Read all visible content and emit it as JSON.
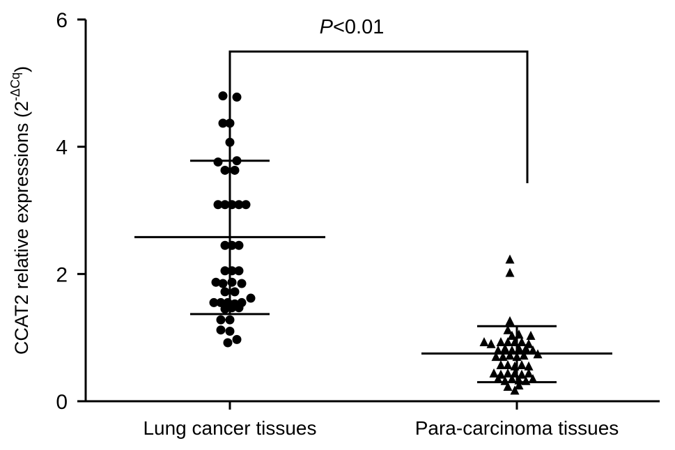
{
  "chart_data": {
    "type": "scatter",
    "ylabel": "CCAT2 relative expressions (2",
    "ylabel_sup": "-ΔCq",
    "ylabel_close": ")",
    "ylim": [
      0,
      6
    ],
    "yticks": [
      0,
      2,
      4,
      6
    ],
    "categories": [
      "Lung cancer tissues",
      "Para-carcinoma tissues"
    ],
    "significance": {
      "prefix": "P",
      "rest": "<0.01"
    },
    "grid": false,
    "series": [
      {
        "category": "Lung cancer tissues",
        "marker": "circle",
        "mean": 2.58,
        "sd_upper": 3.78,
        "sd_lower": 1.37,
        "points": [
          {
            "x": -0.1,
            "y": 4.8
          },
          {
            "x": 0.1,
            "y": 4.78
          },
          {
            "x": -0.1,
            "y": 4.37
          },
          {
            "x": 0.0,
            "y": 4.37
          },
          {
            "x": 0.0,
            "y": 4.07
          },
          {
            "x": -0.17,
            "y": 3.76
          },
          {
            "x": 0.1,
            "y": 3.78
          },
          {
            "x": -0.07,
            "y": 3.63
          },
          {
            "x": 0.07,
            "y": 3.63
          },
          {
            "x": -0.17,
            "y": 3.09
          },
          {
            "x": -0.07,
            "y": 3.09
          },
          {
            "x": 0.03,
            "y": 3.09
          },
          {
            "x": 0.13,
            "y": 3.09
          },
          {
            "x": 0.23,
            "y": 3.09
          },
          {
            "x": -0.07,
            "y": 2.45
          },
          {
            "x": 0.03,
            "y": 2.45
          },
          {
            "x": 0.13,
            "y": 2.45
          },
          {
            "x": -0.07,
            "y": 2.05
          },
          {
            "x": 0.03,
            "y": 2.05
          },
          {
            "x": 0.13,
            "y": 2.05
          },
          {
            "x": -0.2,
            "y": 1.87
          },
          {
            "x": -0.1,
            "y": 1.85
          },
          {
            "x": 0.03,
            "y": 1.87
          },
          {
            "x": 0.17,
            "y": 1.85
          },
          {
            "x": -0.07,
            "y": 1.72
          },
          {
            "x": 0.07,
            "y": 1.72
          },
          {
            "x": -0.23,
            "y": 1.55
          },
          {
            "x": -0.13,
            "y": 1.55
          },
          {
            "x": -0.03,
            "y": 1.55
          },
          {
            "x": 0.07,
            "y": 1.53
          },
          {
            "x": 0.17,
            "y": 1.55
          },
          {
            "x": 0.3,
            "y": 1.62
          },
          {
            "x": -0.07,
            "y": 1.45
          },
          {
            "x": 0.03,
            "y": 1.47
          },
          {
            "x": 0.13,
            "y": 1.47
          },
          {
            "x": -0.13,
            "y": 1.28
          },
          {
            "x": 0.0,
            "y": 1.28
          },
          {
            "x": -0.13,
            "y": 1.12
          },
          {
            "x": 0.0,
            "y": 1.1
          },
          {
            "x": -0.03,
            "y": 0.92
          },
          {
            "x": 0.1,
            "y": 0.97
          }
        ]
      },
      {
        "category": "Para-carcinoma tissues",
        "marker": "triangle",
        "mean": 0.75,
        "sd_upper": 1.18,
        "sd_lower": 0.3,
        "points": [
          {
            "x": -0.1,
            "y": 2.23
          },
          {
            "x": -0.1,
            "y": 2.02
          },
          {
            "x": -0.1,
            "y": 1.26
          },
          {
            "x": -0.13,
            "y": 1.12
          },
          {
            "x": -0.07,
            "y": 1.03
          },
          {
            "x": 0.03,
            "y": 1.05
          },
          {
            "x": 0.2,
            "y": 1.03
          },
          {
            "x": -0.47,
            "y": 0.93
          },
          {
            "x": -0.37,
            "y": 0.9
          },
          {
            "x": -0.23,
            "y": 0.93
          },
          {
            "x": -0.13,
            "y": 0.93
          },
          {
            "x": -0.03,
            "y": 0.93
          },
          {
            "x": 0.07,
            "y": 0.93
          },
          {
            "x": 0.17,
            "y": 0.9
          },
          {
            "x": -0.27,
            "y": 0.8
          },
          {
            "x": -0.17,
            "y": 0.83
          },
          {
            "x": -0.07,
            "y": 0.8
          },
          {
            "x": 0.03,
            "y": 0.83
          },
          {
            "x": 0.13,
            "y": 0.83
          },
          {
            "x": 0.23,
            "y": 0.8
          },
          {
            "x": -0.3,
            "y": 0.7
          },
          {
            "x": -0.2,
            "y": 0.7
          },
          {
            "x": -0.1,
            "y": 0.72
          },
          {
            "x": 0.0,
            "y": 0.7
          },
          {
            "x": 0.1,
            "y": 0.72
          },
          {
            "x": 0.3,
            "y": 0.74
          },
          {
            "x": -0.23,
            "y": 0.57
          },
          {
            "x": -0.13,
            "y": 0.57
          },
          {
            "x": -0.03,
            "y": 0.55
          },
          {
            "x": 0.07,
            "y": 0.57
          },
          {
            "x": 0.17,
            "y": 0.55
          },
          {
            "x": -0.33,
            "y": 0.44
          },
          {
            "x": -0.23,
            "y": 0.42
          },
          {
            "x": -0.13,
            "y": 0.44
          },
          {
            "x": -0.03,
            "y": 0.44
          },
          {
            "x": 0.07,
            "y": 0.42
          },
          {
            "x": 0.17,
            "y": 0.44
          },
          {
            "x": -0.27,
            "y": 0.35
          },
          {
            "x": -0.17,
            "y": 0.32
          },
          {
            "x": -0.07,
            "y": 0.35
          },
          {
            "x": 0.03,
            "y": 0.33
          },
          {
            "x": 0.13,
            "y": 0.32
          },
          {
            "x": 0.23,
            "y": 0.35
          },
          {
            "x": -0.13,
            "y": 0.23
          },
          {
            "x": 0.03,
            "y": 0.25
          },
          {
            "x": -0.03,
            "y": 0.17
          }
        ]
      }
    ]
  }
}
